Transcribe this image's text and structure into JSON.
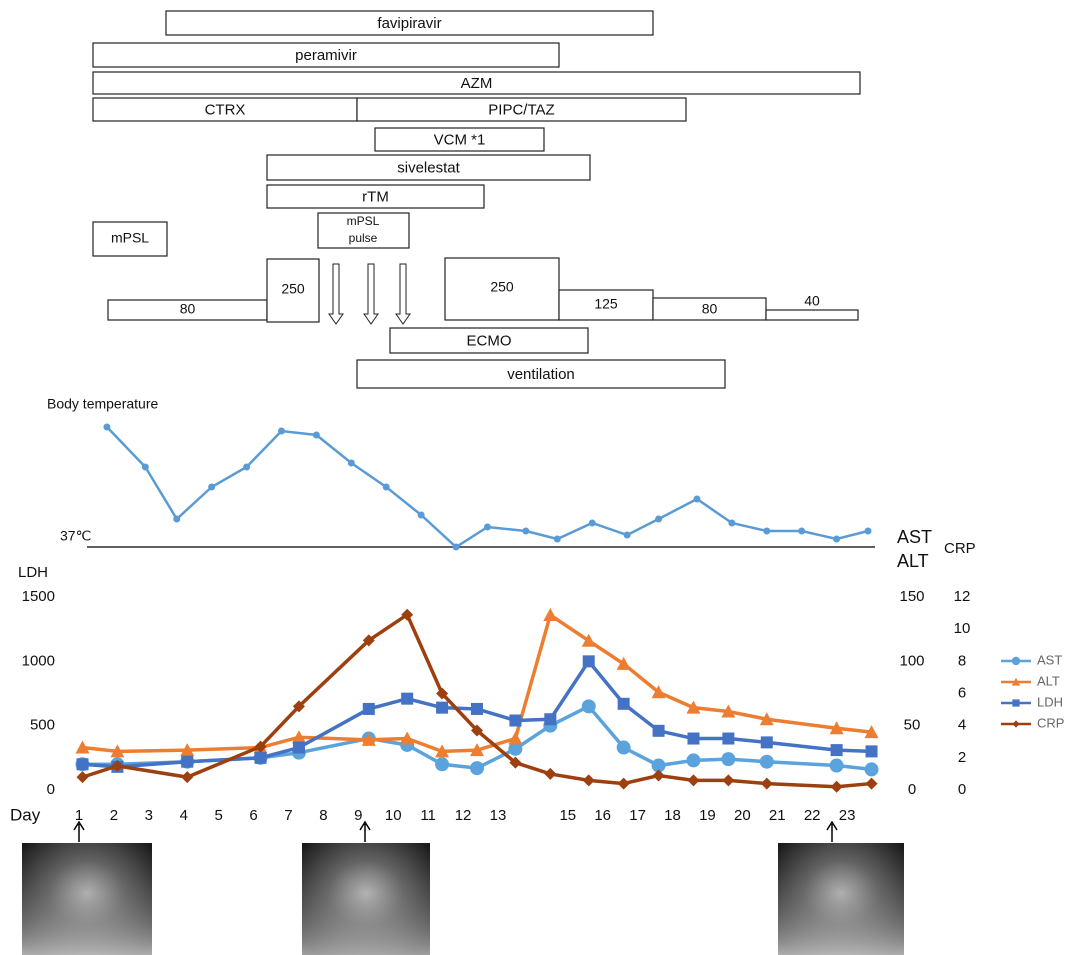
{
  "treatments": [
    "favipiravir",
    "peramivir",
    "AZM",
    "CTRX",
    "PIPC/TAZ",
    "VCM *1",
    "sivelestat",
    "rTM",
    "ECMO",
    "ventilation"
  ],
  "mpsl": {
    "label": "mPSL",
    "pulse_label": [
      "mPSL",
      "pulse"
    ],
    "doses": [
      80,
      250,
      250,
      125,
      80,
      40
    ]
  },
  "chart_data": [
    {
      "type": "line",
      "title": "Body temperature",
      "color": "#5b9bd5",
      "x": [
        1.8,
        2.9,
        3.8,
        4.8,
        5.8,
        6.8,
        7.8,
        8.8,
        9.8,
        10.8,
        11.8,
        12.7,
        13.8,
        14.7,
        15.7,
        16.7,
        17.6,
        18.7,
        19.7,
        20.7,
        21.7,
        22.7,
        23.6
      ],
      "values": [
        40.0,
        39.0,
        37.7,
        38.5,
        39.0,
        39.9,
        39.8,
        39.1,
        38.5,
        37.8,
        37.0,
        37.5,
        37.4,
        37.2,
        37.6,
        37.3,
        37.7,
        38.2,
        37.6,
        37.4,
        37.4,
        37.2,
        37.4
      ],
      "xlim": [
        1,
        24
      ],
      "ylim": [
        37,
        40.5
      ],
      "reference_line": {
        "value": 37,
        "label": "37℃"
      }
    },
    {
      "type": "line",
      "xlabel": "Day",
      "ylabel": "LDH",
      "y2label": [
        "AST",
        "ALT"
      ],
      "y3label": "CRP",
      "legend": "right",
      "x": [
        1.1,
        2.1,
        4.1,
        6.2,
        7.3,
        9.3,
        10.4,
        11.4,
        12.4,
        13.5,
        14.5,
        15.6,
        16.6,
        17.6,
        18.6,
        19.6,
        20.7,
        22.7,
        23.7
      ],
      "xlim": [
        1,
        24
      ],
      "xticks": [
        1,
        2,
        3,
        4,
        5,
        6,
        7,
        8,
        9,
        10,
        11,
        12,
        13,
        15,
        16,
        17,
        18,
        19,
        20,
        21,
        22,
        23
      ],
      "ylim": [
        0,
        1500
      ],
      "yticks": [
        0,
        500,
        1000,
        1500
      ],
      "y2lim": [
        0,
        150
      ],
      "y2ticks": [
        0,
        50,
        100,
        150
      ],
      "y3lim": [
        0,
        12
      ],
      "y3ticks": [
        0,
        2,
        4,
        6,
        8,
        10,
        12
      ],
      "series": [
        {
          "name": "AST",
          "color": "#5ba3dc",
          "marker": "circle",
          "axis": "y2",
          "values": [
            20,
            20,
            22,
            25,
            29,
            40,
            35,
            20,
            17,
            32,
            50,
            65,
            33,
            19,
            23,
            24,
            22,
            19,
            16
          ]
        },
        {
          "name": "ALT",
          "color": "#ed7d31",
          "marker": "triangle",
          "axis": "y2",
          "values": [
            33,
            30,
            31,
            33,
            41,
            39,
            40,
            30,
            31,
            40,
            136,
            116,
            98,
            76,
            64,
            61,
            55,
            48,
            45
          ]
        },
        {
          "name": "LDH",
          "color": "#4472c4",
          "marker": "square",
          "axis": "y",
          "values": [
            200,
            180,
            220,
            250,
            330,
            630,
            710,
            640,
            630,
            540,
            550,
            1000,
            670,
            460,
            400,
            400,
            370,
            310,
            300
          ]
        },
        {
          "name": "CRP",
          "color": "#9e3f0f",
          "marker": "diamond",
          "axis": "y3",
          "values": [
            0.8,
            1.5,
            0.8,
            2.7,
            5.2,
            9.3,
            10.9,
            6.0,
            3.7,
            1.7,
            1.0,
            0.6,
            0.4,
            0.9,
            0.6,
            0.6,
            0.4,
            0.2,
            0.4
          ]
        }
      ]
    }
  ]
}
